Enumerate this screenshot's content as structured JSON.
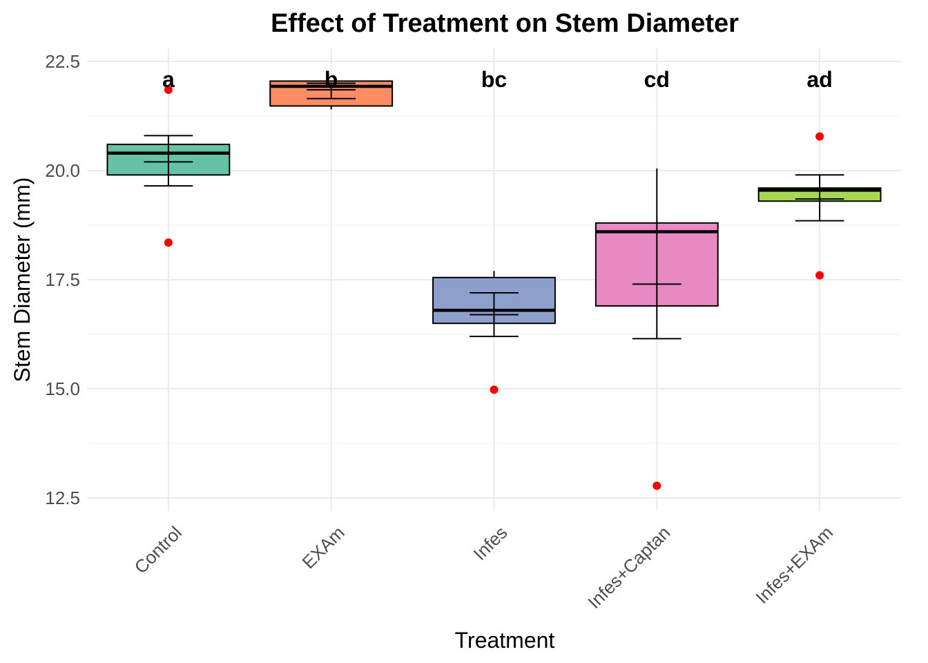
{
  "chart_data": {
    "type": "box",
    "title": "Effect of Treatment on Stem Diameter",
    "xlabel": "Treatment",
    "ylabel": "Stem Diameter (mm)",
    "ylim": [
      12.2,
      22.8
    ],
    "y_ticks": [
      12.5,
      15.0,
      17.5,
      20.0,
      22.5
    ],
    "y_tick_labels": [
      "12.5",
      "15.0",
      "17.5",
      "20.0",
      "22.5"
    ],
    "grid": true,
    "legend": "none",
    "categories": [
      "Control",
      "EXAm",
      "Infes",
      "Infes+Captan",
      "Infes+EXAm"
    ],
    "boxes": [
      {
        "category": "Control",
        "q1": 19.9,
        "median": 20.4,
        "q3": 20.6,
        "whisker_low": 19.9,
        "whisker_high": 20.6,
        "color": "#66c2a5"
      },
      {
        "category": "EXAm",
        "q1": 21.48,
        "median": 21.93,
        "q3": 22.05,
        "whisker_low": 21.4,
        "whisker_high": 22.05,
        "color": "#fc8d62"
      },
      {
        "category": "Infes",
        "q1": 16.5,
        "median": 16.8,
        "q3": 17.55,
        "whisker_low": 16.5,
        "whisker_high": 17.7,
        "color": "#8da0cb"
      },
      {
        "category": "Infes+Captan",
        "q1": 16.9,
        "median": 18.6,
        "q3": 18.8,
        "whisker_low": 16.9,
        "whisker_high": 18.8,
        "color": "#e78ac3"
      },
      {
        "category": "Infes+EXAm",
        "q1": 19.3,
        "median": 19.55,
        "q3": 19.6,
        "whisker_low": 19.3,
        "whisker_high": 19.6,
        "color": "#a6d854"
      }
    ],
    "error_bars": [
      {
        "category": "Control",
        "mean": 20.2,
        "lower": 19.65,
        "upper": 20.8
      },
      {
        "category": "EXAm",
        "mean": 21.85,
        "lower": 21.65,
        "upper": 22.0
      },
      {
        "category": "Infes",
        "mean": 16.7,
        "lower": 16.2,
        "upper": 17.2
      },
      {
        "category": "Infes+Captan",
        "mean": 17.4,
        "lower": 16.15,
        "upper": 20.05
      },
      {
        "category": "Infes+EXAm",
        "mean": 19.35,
        "lower": 18.85,
        "upper": 19.9
      }
    ],
    "cap_widths": [
      0.15,
      0.15,
      0.15,
      0.15,
      0.15
    ],
    "error_bar_top_caps": [
      true,
      true,
      true,
      false,
      true
    ],
    "outliers": [
      {
        "category": "Control",
        "values": [
          21.85,
          18.35
        ]
      },
      {
        "category": "EXAm",
        "values": []
      },
      {
        "category": "Infes",
        "values": [
          14.98
        ]
      },
      {
        "category": "Infes+Captan",
        "values": [
          12.78
        ]
      },
      {
        "category": "Infes+EXAm",
        "values": [
          20.78,
          17.6
        ]
      }
    ],
    "outlier_color": "#ff0000",
    "significance_letters": [
      "a",
      "b",
      "bc",
      "cd",
      "ad"
    ],
    "letter_y": 22.1
  }
}
